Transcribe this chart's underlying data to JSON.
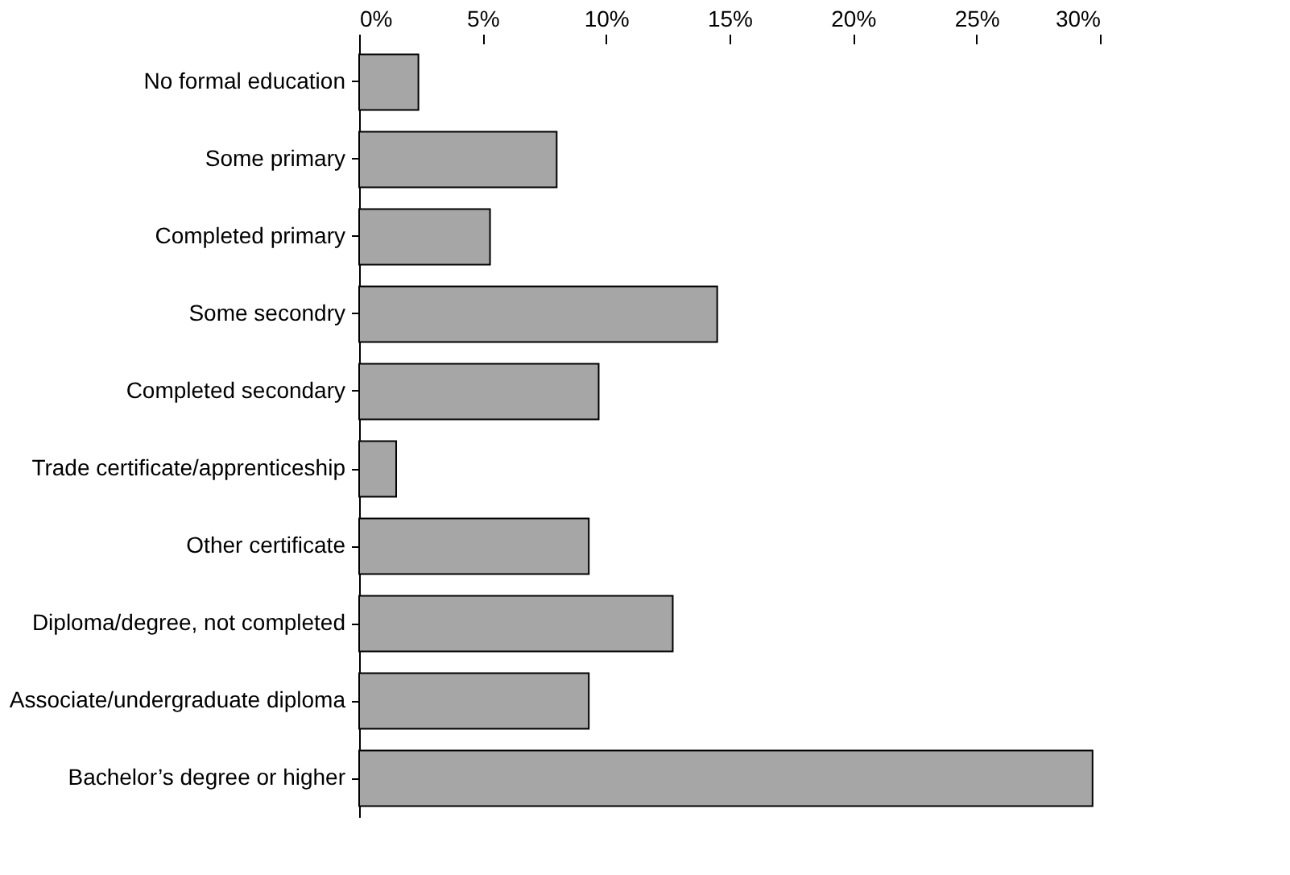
{
  "chart_data": {
    "type": "bar",
    "orientation": "horizontal",
    "categories": [
      "No formal education",
      "Some primary",
      "Completed primary",
      "Some secondry",
      "Completed secondary",
      "Trade certificate/apprenticeship",
      "Other certificate",
      "Diploma/degree, not completed",
      "Associate/undergraduate diploma",
      "Bachelor’s degree or higher"
    ],
    "values": [
      2.4,
      8.0,
      5.3,
      14.5,
      9.7,
      1.5,
      9.3,
      12.7,
      9.3,
      29.7
    ],
    "color": "#a6a6a6",
    "xlim": [
      0,
      30
    ],
    "xticks": [
      {
        "value": 0,
        "label": "0%"
      },
      {
        "value": 5,
        "label": "5%"
      },
      {
        "value": 10,
        "label": "10%"
      },
      {
        "value": 15,
        "label": "15%"
      },
      {
        "value": 20,
        "label": "20%"
      },
      {
        "value": 25,
        "label": "25%"
      },
      {
        "value": 30,
        "label": "30%"
      }
    ],
    "grid": false
  }
}
